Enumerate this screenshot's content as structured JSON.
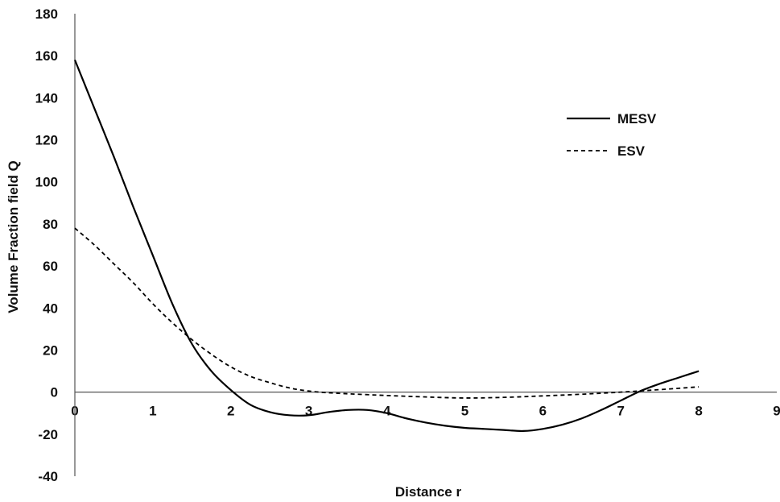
{
  "chart_data": {
    "type": "line",
    "title": "",
    "xlabel": "Distance r",
    "ylabel": "Volume Fraction field Q",
    "xlim": [
      0,
      9
    ],
    "ylim": [
      -40,
      180
    ],
    "xticks": [
      "0",
      "1",
      "2",
      "3",
      "4",
      "5",
      "6",
      "7",
      "8",
      "9"
    ],
    "yticks": [
      "180",
      "160",
      "140",
      "120",
      "100",
      "80",
      "60",
      "40",
      "20",
      "0",
      "-20",
      "-40"
    ],
    "grid": false,
    "legend_position": "top-right",
    "series": [
      {
        "name": "MESV",
        "style": "solid",
        "color": "#000000",
        "x": [
          0,
          0.25,
          0.5,
          0.75,
          1.0,
          1.25,
          1.5,
          1.75,
          2.0,
          2.25,
          2.5,
          2.75,
          3.0,
          3.25,
          3.5,
          3.75,
          4.0,
          4.25,
          4.5,
          4.75,
          5.0,
          5.25,
          5.5,
          5.75,
          6.0,
          6.25,
          6.5,
          6.75,
          7.0,
          7.25,
          7.5,
          7.75,
          8.0
        ],
        "y": [
          158,
          135,
          112,
          88,
          65,
          42,
          23,
          10,
          1,
          -6,
          -9.5,
          -11,
          -11,
          -9.5,
          -8.5,
          -8.5,
          -10,
          -12.5,
          -14.5,
          -16,
          -17,
          -17.5,
          -18,
          -18.5,
          -17.5,
          -15.5,
          -12.5,
          -8.5,
          -4,
          0.5,
          4,
          7,
          10
        ]
      },
      {
        "name": "ESV",
        "style": "dashed",
        "color": "#000000",
        "x": [
          0,
          0.25,
          0.5,
          0.75,
          1.0,
          1.25,
          1.5,
          1.75,
          2.0,
          2.25,
          2.5,
          2.75,
          3.0,
          3.25,
          3.5,
          3.75,
          4.0,
          4.5,
          5.0,
          5.5,
          6.0,
          6.5,
          7.0,
          7.5,
          8.0
        ],
        "y": [
          78,
          70,
          61,
          52,
          42,
          33,
          25,
          18,
          12,
          7.5,
          4.5,
          2,
          0.5,
          -0.3,
          -0.8,
          -1.2,
          -1.6,
          -2.3,
          -2.8,
          -2.5,
          -1.8,
          -1,
          0,
          1.2,
          2.5
        ]
      }
    ]
  }
}
